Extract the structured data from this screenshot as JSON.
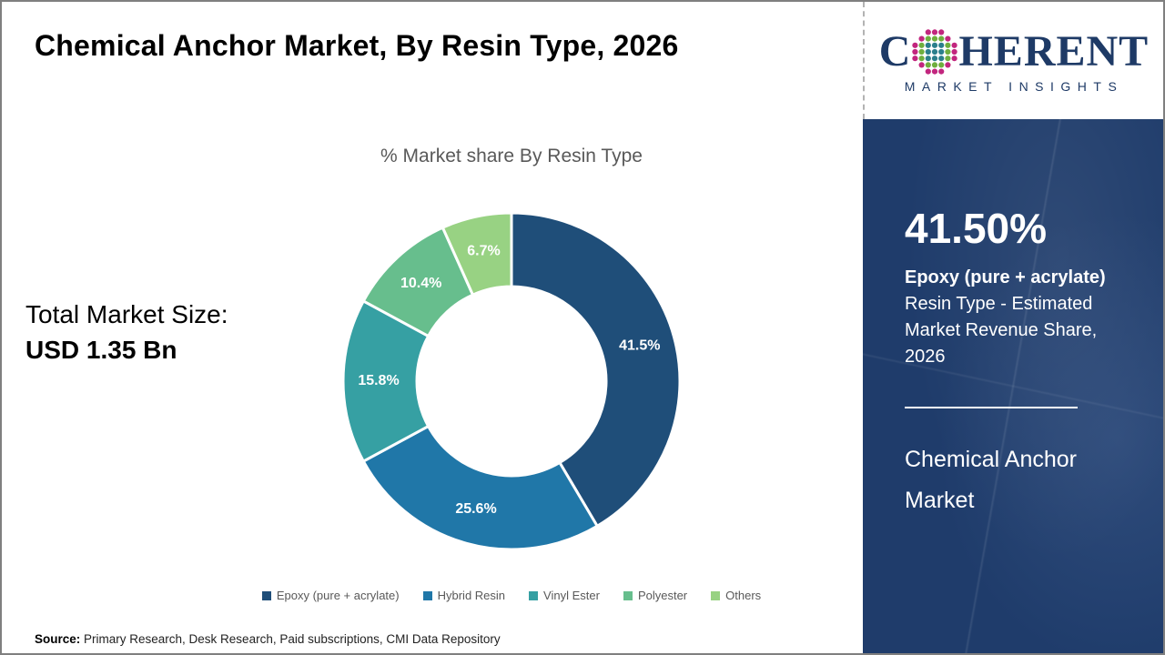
{
  "page": {
    "title": "Chemical Anchor Market, By Resin Type, 2026",
    "source_label": "Source:",
    "source_text": " Primary Research, Desk Research, Paid subscriptions, CMI Data Repository"
  },
  "left_panel": {
    "total_label": "Total Market Size:",
    "total_value": "USD 1.35 Bn"
  },
  "chart_data": {
    "type": "pie",
    "donut": true,
    "title": "% Market share By Resin Type",
    "start_angle_deg": 0,
    "direction": "clockwise",
    "legend_position": "bottom",
    "series": [
      {
        "name": "Epoxy (pure + acrylate)",
        "value": 41.5,
        "label": "41.5%",
        "color": "#1F4E79"
      },
      {
        "name": "Hybrid Resin",
        "value": 25.6,
        "label": "25.6%",
        "color": "#2077A8"
      },
      {
        "name": "Vinyl Ester",
        "value": 15.8,
        "label": "15.8%",
        "color": "#36A0A3"
      },
      {
        "name": "Polyester",
        "value": 10.4,
        "label": "10.4%",
        "color": "#67BE8D"
      },
      {
        "name": "Others",
        "value": 6.7,
        "label": "6.7%",
        "color": "#98D283"
      }
    ]
  },
  "sidebar": {
    "headline_value": "41.50%",
    "desc_bold": "Epoxy (pure + acrylate)",
    "desc_rest": " Resin Type - Estimated Market Revenue Share, 2026",
    "footer_title": "Chemical Anchor Market",
    "bg_color": "#1F3C6B"
  },
  "logo": {
    "part1": "C",
    "part2": "HERENT",
    "subtitle": "MARKET INSIGHTS",
    "text_color": "#1E3A66",
    "globe_colors": {
      "inner": "#2B7F8C",
      "mid": "#6FAF3E",
      "outer": "#C2267E"
    }
  }
}
